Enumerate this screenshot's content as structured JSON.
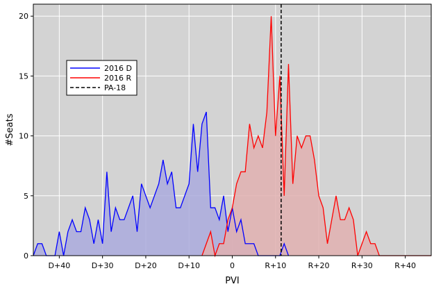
{
  "chart_data": {
    "type": "area",
    "xlabel": "PVI",
    "ylabel": "#Seats",
    "xlim": [
      -46,
      46
    ],
    "ylim": [
      0,
      21
    ],
    "grid": true,
    "legend_placement": "upper-left",
    "background_color": "#d3d3d3",
    "x_ticks": [
      {
        "value": -40,
        "label": "D+40"
      },
      {
        "value": -30,
        "label": "D+30"
      },
      {
        "value": -20,
        "label": "D+20"
      },
      {
        "value": -10,
        "label": "D+10"
      },
      {
        "value": 0,
        "label": "0"
      },
      {
        "value": 10,
        "label": "R+10"
      },
      {
        "value": 20,
        "label": "R+20"
      },
      {
        "value": 30,
        "label": "R+30"
      },
      {
        "value": 40,
        "label": "R+40"
      }
    ],
    "y_ticks": [
      {
        "value": 0,
        "label": "0"
      },
      {
        "value": 5,
        "label": "5"
      },
      {
        "value": 10,
        "label": "10"
      },
      {
        "value": 15,
        "label": "15"
      },
      {
        "value": 20,
        "label": "20"
      }
    ],
    "series": [
      {
        "name": "2016 D",
        "color": "#0000ff",
        "fill": "#aaaadd",
        "points": [
          [
            -46,
            0
          ],
          [
            -45,
            1
          ],
          [
            -44,
            1
          ],
          [
            -43,
            0
          ],
          [
            -42,
            0
          ],
          [
            -41,
            0
          ],
          [
            -40,
            2
          ],
          [
            -39,
            0
          ],
          [
            -38,
            2
          ],
          [
            -37,
            3
          ],
          [
            -36,
            2
          ],
          [
            -35,
            2
          ],
          [
            -34,
            4
          ],
          [
            -33,
            3
          ],
          [
            -32,
            1
          ],
          [
            -31,
            3
          ],
          [
            -30,
            1
          ],
          [
            -29,
            7
          ],
          [
            -28,
            2
          ],
          [
            -27,
            4
          ],
          [
            -26,
            3
          ],
          [
            -25,
            3
          ],
          [
            -24,
            4
          ],
          [
            -23,
            5
          ],
          [
            -22,
            2
          ],
          [
            -21,
            6
          ],
          [
            -20,
            5
          ],
          [
            -19,
            4
          ],
          [
            -18,
            5
          ],
          [
            -17,
            6
          ],
          [
            -16,
            8
          ],
          [
            -15,
            6
          ],
          [
            -14,
            7
          ],
          [
            -13,
            4
          ],
          [
            -12,
            4
          ],
          [
            -11,
            5
          ],
          [
            -10,
            6
          ],
          [
            -9,
            11
          ],
          [
            -8,
            7
          ],
          [
            -7,
            11
          ],
          [
            -6,
            12
          ],
          [
            -5,
            4
          ],
          [
            -4,
            4
          ],
          [
            -3,
            3
          ],
          [
            -2,
            5
          ],
          [
            -1,
            2
          ],
          [
            0,
            4
          ],
          [
            1,
            2
          ],
          [
            2,
            3
          ],
          [
            3,
            1
          ],
          [
            4,
            1
          ],
          [
            5,
            1
          ],
          [
            6,
            0
          ],
          [
            7,
            0
          ],
          [
            8,
            0
          ],
          [
            9,
            0
          ],
          [
            10,
            0
          ],
          [
            11,
            0
          ],
          [
            12,
            1
          ],
          [
            13,
            0
          ]
        ]
      },
      {
        "name": "2016 R",
        "color": "#ff0000",
        "fill": "#e0b0b0",
        "points": [
          [
            -7,
            0
          ],
          [
            -6,
            1
          ],
          [
            -5,
            2
          ],
          [
            -4,
            0
          ],
          [
            -3,
            1
          ],
          [
            -2,
            1
          ],
          [
            -1,
            3
          ],
          [
            0,
            4
          ],
          [
            1,
            6
          ],
          [
            2,
            7
          ],
          [
            3,
            7
          ],
          [
            4,
            11
          ],
          [
            5,
            9
          ],
          [
            6,
            10
          ],
          [
            7,
            9
          ],
          [
            8,
            12
          ],
          [
            9,
            20
          ],
          [
            10,
            10
          ],
          [
            11,
            15
          ],
          [
            12,
            5
          ],
          [
            13,
            16
          ],
          [
            14,
            6
          ],
          [
            15,
            10
          ],
          [
            16,
            9
          ],
          [
            17,
            10
          ],
          [
            18,
            10
          ],
          [
            19,
            8
          ],
          [
            20,
            5
          ],
          [
            21,
            4
          ],
          [
            22,
            1
          ],
          [
            23,
            3
          ],
          [
            24,
            5
          ],
          [
            25,
            3
          ],
          [
            26,
            3
          ],
          [
            27,
            4
          ],
          [
            28,
            3
          ],
          [
            29,
            0
          ],
          [
            30,
            1
          ],
          [
            31,
            2
          ],
          [
            32,
            1
          ],
          [
            33,
            1
          ],
          [
            34,
            0
          ],
          [
            46,
            0
          ]
        ]
      }
    ],
    "reference_line": {
      "name": "PA-18",
      "x": 11.3,
      "color": "#000000",
      "style": "dashed"
    }
  }
}
